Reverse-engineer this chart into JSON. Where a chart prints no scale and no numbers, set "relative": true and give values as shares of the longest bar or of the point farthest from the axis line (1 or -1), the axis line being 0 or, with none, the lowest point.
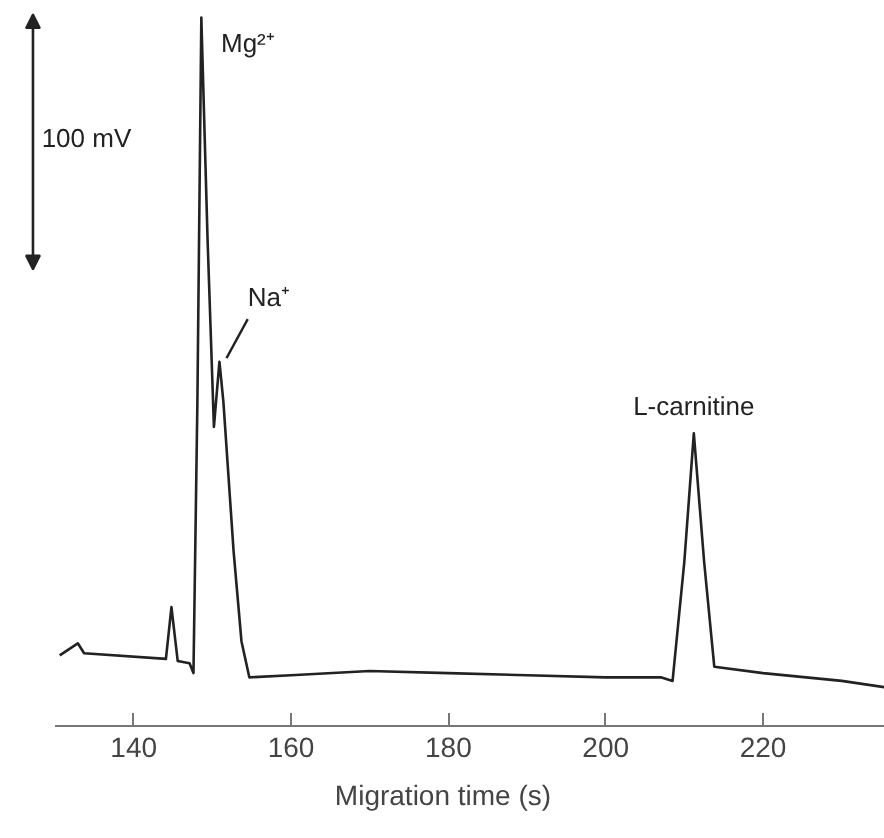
{
  "chart_data": {
    "type": "line",
    "relative": true,
    "xlabel": "Migration time (s)",
    "x": [
      130.6,
      132.9,
      133.7,
      144.1,
      144.8,
      145.6,
      147.1,
      147.6,
      148.1,
      148.6,
      149.4,
      150.2,
      150.9,
      151.4,
      152.7,
      153.7,
      154.7,
      160,
      170,
      180,
      190,
      200,
      207,
      208.5,
      210.0,
      211.2,
      212.5,
      213.8,
      220,
      230,
      235.5
    ],
    "series": [
      {
        "color": "#222222",
        "values": [
          0.101,
          0.118,
          0.104,
          0.096,
          0.169,
          0.093,
          0.09,
          0.076,
          0.459,
          1,
          0.685,
          0.423,
          0.515,
          0.459,
          0.248,
          0.121,
          0.07,
          0.073,
          0.079,
          0.076,
          0.073,
          0.07,
          0.07,
          0.065,
          0.234,
          0.414,
          0.234,
          0.085,
          0.076,
          0.065,
          0.056
        ]
      }
    ],
    "xlim": [
      130,
      235.5
    ],
    "xticks": [
      140,
      160,
      180,
      200,
      220
    ],
    "tick_labels": "x",
    "grid": false,
    "marker": "none",
    "line_style": "solid",
    "annotations": [
      "100 mV",
      {
        "text": "Mg²⁺",
        "x": 148.6,
        "y": 1
      },
      {
        "text": "Na⁺",
        "x": 150.9,
        "y": 0.515
      },
      {
        "text": "L-carnitine",
        "x": 211.2,
        "y": 0.414
      }
    ]
  }
}
